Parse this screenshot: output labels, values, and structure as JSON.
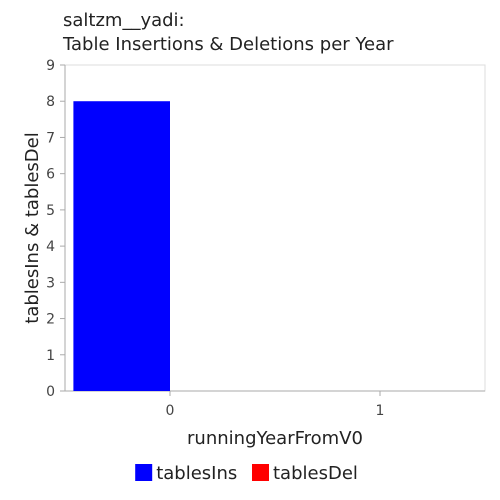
{
  "chart_data": {
    "type": "bar",
    "title_lines": [
      "saltzm__yadi:",
      "Table Insertions & Deletions per Year"
    ],
    "xlabel": "runningYearFromV0",
    "ylabel": "tablesIns & tablesDel",
    "categories": [
      "0",
      "1"
    ],
    "ylim": [
      0,
      9
    ],
    "yticks": [
      0,
      1,
      2,
      3,
      4,
      5,
      6,
      7,
      8,
      9
    ],
    "series": [
      {
        "name": "tablesIns",
        "color": "#0000ff",
        "values": [
          8,
          0
        ]
      },
      {
        "name": "tablesDel",
        "color": "#ff0000",
        "values": [
          0,
          0
        ]
      }
    ],
    "legend_position": "bottom-center",
    "grid": false
  }
}
